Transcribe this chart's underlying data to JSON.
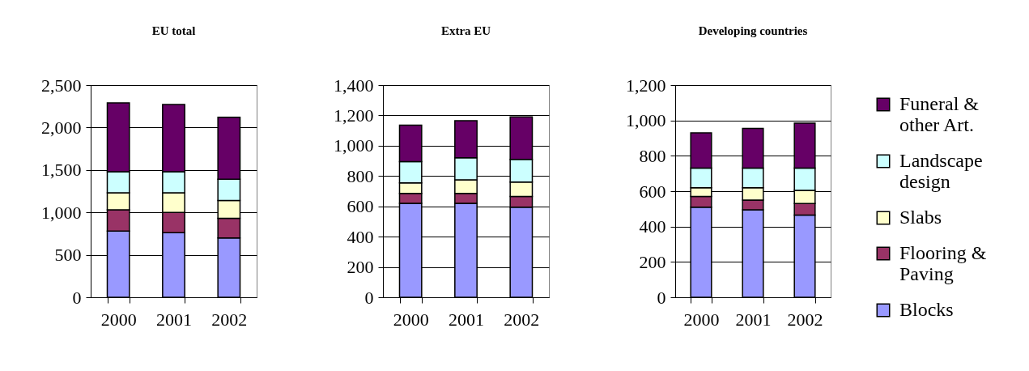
{
  "chart_data": [
    {
      "type": "bar",
      "title": "EU total",
      "stacked": true,
      "grid": "y",
      "legend": "right",
      "categories": [
        "2000",
        "2001",
        "2002"
      ],
      "ylim": [
        0,
        2500
      ],
      "yticks": [
        0,
        500,
        {
          "value": 1000,
          "label": "1,000"
        },
        {
          "value": 1500,
          "label": "1,500"
        },
        {
          "value": 2000,
          "label": "2,000"
        },
        {
          "value": 2500,
          "label": "2,500"
        }
      ],
      "series": [
        {
          "name": "Blocks",
          "color": "#9999ff",
          "values": [
            780,
            760,
            700
          ]
        },
        {
          "name": "Flooring & Paving",
          "color": "#993366",
          "values": [
            250,
            240,
            230
          ]
        },
        {
          "name": "Slabs",
          "color": "#ffffcc",
          "values": [
            200,
            230,
            210
          ]
        },
        {
          "name": "Landscape design",
          "color": "#ccffff",
          "values": [
            250,
            250,
            250
          ]
        },
        {
          "name": "Funeral & other Art.",
          "color": "#660066",
          "values": [
            810,
            790,
            730
          ]
        }
      ]
    },
    {
      "type": "bar",
      "title": "Extra EU",
      "stacked": true,
      "grid": "y",
      "legend": "right",
      "categories": [
        "2000",
        "2001",
        "2002"
      ],
      "ylim": [
        0,
        1400
      ],
      "yticks": [
        0,
        200,
        400,
        600,
        800,
        {
          "value": 1000,
          "label": "1,000"
        },
        {
          "value": 1200,
          "label": "1,200"
        },
        {
          "value": 1400,
          "label": "1,400"
        }
      ],
      "series": [
        {
          "name": "Blocks",
          "color": "#9999ff",
          "values": [
            620,
            620,
            595
          ]
        },
        {
          "name": "Flooring & Paving",
          "color": "#993366",
          "values": [
            65,
            65,
            70
          ]
        },
        {
          "name": "Slabs",
          "color": "#ffffcc",
          "values": [
            70,
            90,
            95
          ]
        },
        {
          "name": "Landscape design",
          "color": "#ccffff",
          "values": [
            140,
            145,
            150
          ]
        },
        {
          "name": "Funeral & other Art.",
          "color": "#660066",
          "values": [
            240,
            245,
            280
          ]
        }
      ]
    },
    {
      "type": "bar",
      "title": "Developing countries",
      "stacked": true,
      "grid": "y",
      "legend": "right",
      "categories": [
        "2000",
        "2001",
        "2002"
      ],
      "ylim": [
        0,
        1200
      ],
      "yticks": [
        0,
        200,
        400,
        600,
        800,
        {
          "value": 1000,
          "label": "1,000"
        },
        {
          "value": 1200,
          "label": "1,200"
        }
      ],
      "series": [
        {
          "name": "Blocks",
          "color": "#9999ff",
          "values": [
            510,
            495,
            465
          ]
        },
        {
          "name": "Flooring & Paving",
          "color": "#993366",
          "values": [
            60,
            55,
            65
          ]
        },
        {
          "name": "Slabs",
          "color": "#ffffcc",
          "values": [
            50,
            70,
            75
          ]
        },
        {
          "name": "Landscape design",
          "color": "#ccffff",
          "values": [
            110,
            110,
            125
          ]
        },
        {
          "name": "Funeral & other Art.",
          "color": "#660066",
          "values": [
            200,
            225,
            255
          ]
        }
      ]
    }
  ]
}
